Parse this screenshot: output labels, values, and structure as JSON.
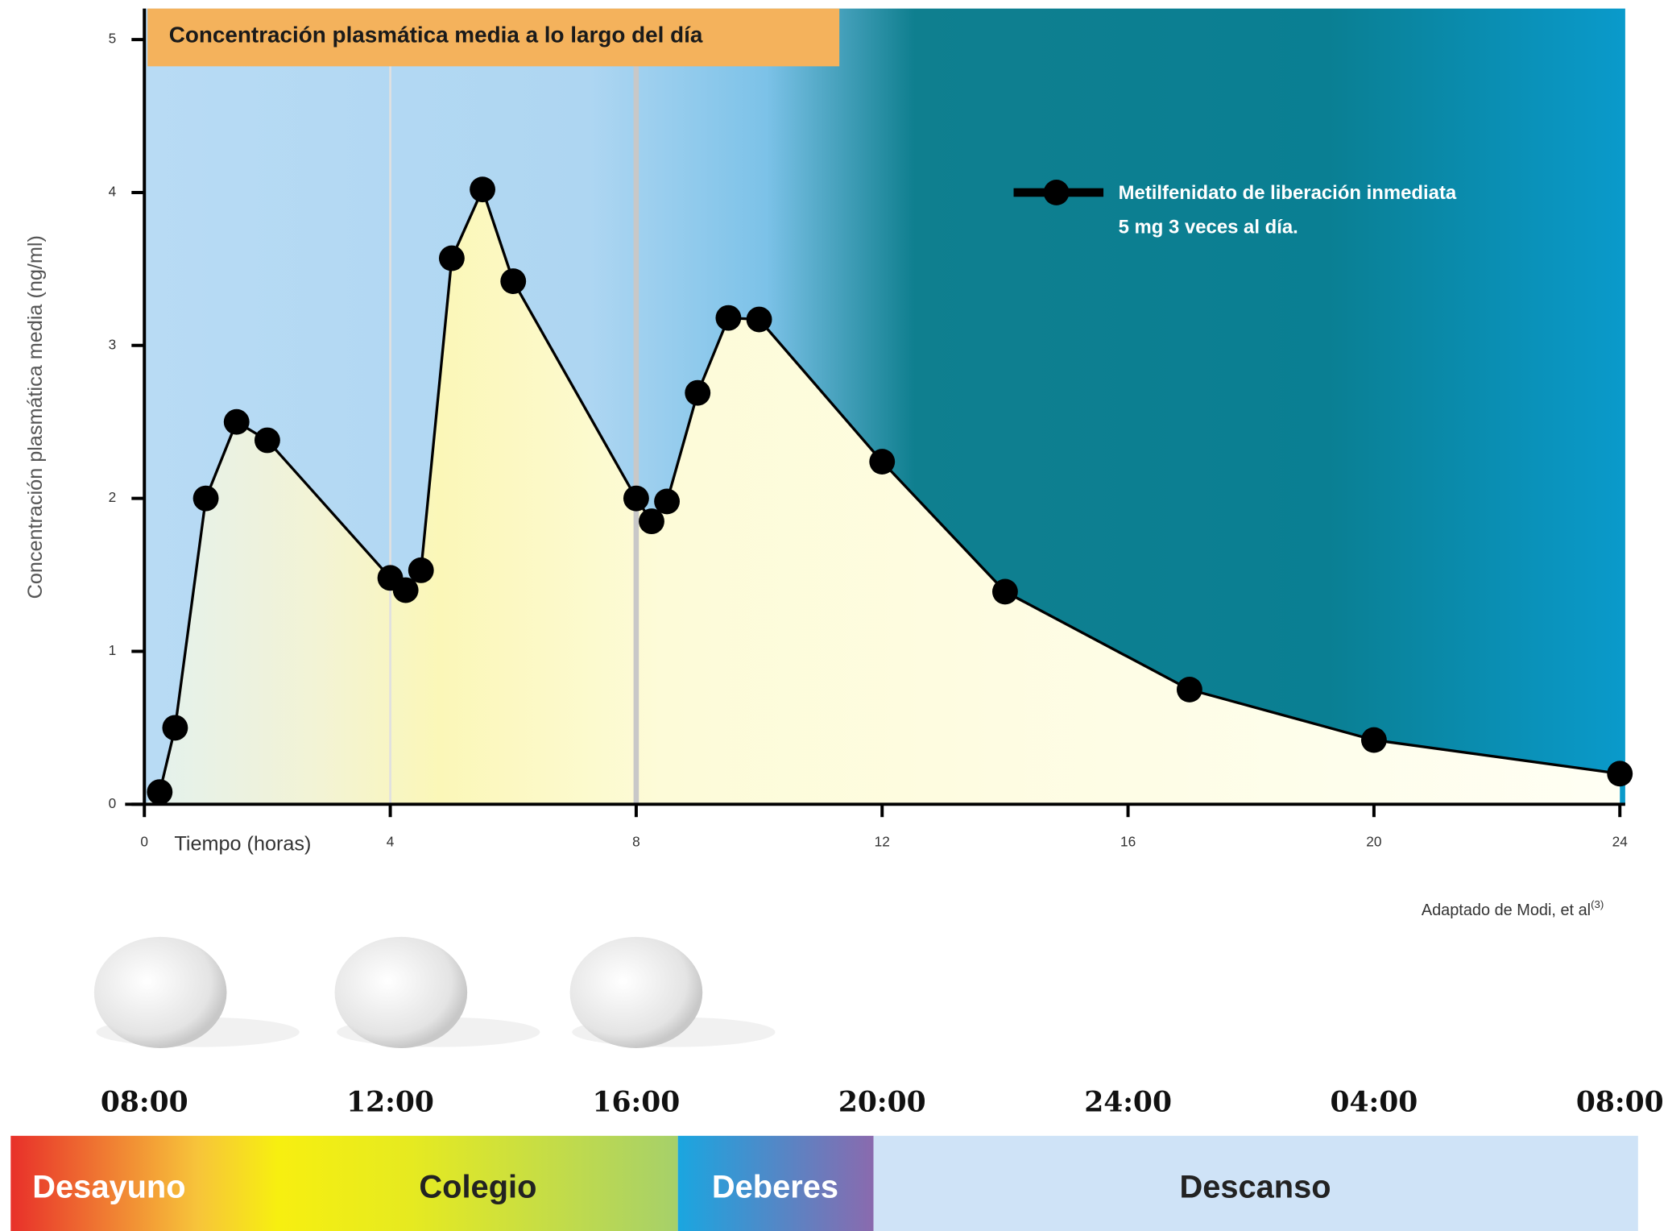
{
  "chart_data": {
    "type": "line",
    "title": "Concentración plasmática media a lo largo del día",
    "y_label": "Concentración plasmática media (ng/ml)",
    "x_label": "Tiempo (horas)",
    "x": [
      0.25,
      0.5,
      1,
      1.5,
      2,
      4,
      4.25,
      4.5,
      5,
      5.5,
      6,
      8,
      8.25,
      8.5,
      9,
      9.5,
      10,
      12,
      14,
      17,
      20,
      24
    ],
    "series": [
      {
        "name": "Metilfenidato de liberación inmediata 5 mg 3 veces al día.",
        "color": "#000000",
        "values": [
          0.08,
          0.5,
          2.0,
          2.5,
          2.38,
          1.48,
          1.4,
          1.53,
          3.57,
          4.02,
          3.42,
          2.0,
          1.85,
          1.98,
          2.69,
          3.18,
          3.17,
          2.24,
          1.39,
          0.75,
          0.42,
          0.2
        ]
      }
    ],
    "xlim": [
      0,
      24
    ],
    "xticks": [
      0,
      4,
      8,
      12,
      16,
      20,
      24
    ],
    "ylim": [
      0,
      5
    ],
    "yticks": [
      0,
      1,
      2,
      3,
      4,
      5
    ],
    "dose_lines": [
      4,
      8
    ],
    "source": "Adaptado de Modi, et al",
    "source_ref": "(3)",
    "time_labels": [
      "08:00",
      "12:00",
      "16:00",
      "20:00",
      "24:00",
      "04:00",
      "08:00"
    ],
    "periods": [
      "Desayuno",
      "Colegio",
      "Deberes",
      "Descanso"
    ]
  }
}
